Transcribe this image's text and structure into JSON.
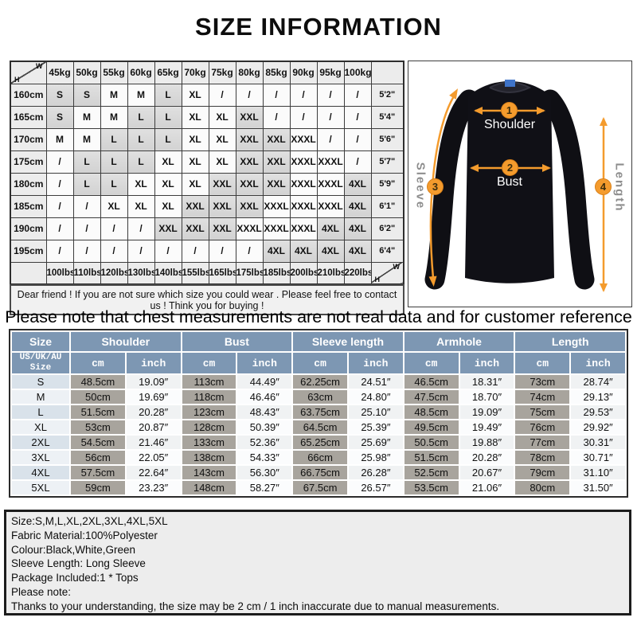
{
  "title": "SIZE INFORMATION",
  "size_matrix": {
    "corner": {
      "top_right": "W",
      "bottom_left": "H"
    },
    "weight_headers": [
      "45kg",
      "50kg",
      "55kg",
      "60kg",
      "65kg",
      "70kg",
      "75kg",
      "80kg",
      "85kg",
      "90kg",
      "95kg",
      "100kg"
    ],
    "rows": [
      {
        "height": "160cm",
        "values": [
          "S",
          "S",
          "M",
          "M",
          "L",
          "XL",
          "/",
          "/",
          "/",
          "/",
          "/",
          "/"
        ],
        "height_ft": "5'2\""
      },
      {
        "height": "165cm",
        "values": [
          "S",
          "M",
          "M",
          "L",
          "L",
          "XL",
          "XL",
          "XXL",
          "/",
          "/",
          "/",
          "/"
        ],
        "height_ft": "5'4\""
      },
      {
        "height": "170cm",
        "values": [
          "M",
          "M",
          "L",
          "L",
          "L",
          "XL",
          "XL",
          "XXL",
          "XXL",
          "XXXL",
          "/",
          "/"
        ],
        "height_ft": "5'6\""
      },
      {
        "height": "175cm",
        "values": [
          "/",
          "L",
          "L",
          "L",
          "XL",
          "XL",
          "XL",
          "XXL",
          "XXL",
          "XXXL",
          "XXXL",
          "/"
        ],
        "height_ft": "5'7\""
      },
      {
        "height": "180cm",
        "values": [
          "/",
          "L",
          "L",
          "XL",
          "XL",
          "XL",
          "XXL",
          "XXL",
          "XXL",
          "XXXL",
          "XXXL",
          "4XL"
        ],
        "height_ft": "5'9\""
      },
      {
        "height": "185cm",
        "values": [
          "/",
          "/",
          "XL",
          "XL",
          "XL",
          "XXL",
          "XXL",
          "XXL",
          "XXXL",
          "XXXL",
          "XXXL",
          "4XL"
        ],
        "height_ft": "6'1\""
      },
      {
        "height": "190cm",
        "values": [
          "/",
          "/",
          "/",
          "/",
          "XXL",
          "XXL",
          "XXL",
          "XXXL",
          "XXXL",
          "XXXL",
          "4XL",
          "4XL"
        ],
        "height_ft": "6'2\""
      },
      {
        "height": "195cm",
        "values": [
          "/",
          "/",
          "/",
          "/",
          "/",
          "/",
          "/",
          "/",
          "4XL",
          "4XL",
          "4XL",
          "4XL"
        ],
        "height_ft": "6'4\""
      }
    ],
    "lbs_footer": [
      "100lbs",
      "110lbs",
      "120lbs",
      "130lbs",
      "140lbs",
      "155lbs",
      "165lbs",
      "175lbs",
      "185lbs",
      "200lbs",
      "210lbs",
      "220lbs"
    ],
    "shaded_sizes": [
      "S",
      "L",
      "XXL",
      "4XL"
    ],
    "note": "Dear friend ! If you are not sure which size you could wear . Please feel free to contact us ! Think you for buying !"
  },
  "garment": {
    "labels": {
      "shoulder": "Shoulder",
      "bust": "Bust",
      "sleeve": "Sleeve",
      "length": "Length"
    },
    "badges": [
      "1",
      "2",
      "3",
      "4"
    ],
    "accent_color": "#F49B2D"
  },
  "notice": "Please note that chest measurements  are not real data and for customer reference only.",
  "detail_table": {
    "groups": [
      "Size",
      "Shoulder",
      "Bust",
      "Sleeve length",
      "Armhole",
      "Length"
    ],
    "size_subheader": "US/UK/AU Size",
    "cm_label": "cm",
    "inch_label": "inch",
    "header_color": "#7D97B3",
    "cm_cell_color": "#A8A49D",
    "rows": [
      [
        "S",
        "48.5cm",
        "19.09″",
        "113cm",
        "44.49″",
        "62.25cm",
        "24.51″",
        "46.5cm",
        "18.31″",
        "73cm",
        "28.74″"
      ],
      [
        "M",
        "50cm",
        "19.69″",
        "118cm",
        "46.46″",
        "63cm",
        "24.80″",
        "47.5cm",
        "18.70″",
        "74cm",
        "29.13″"
      ],
      [
        "L",
        "51.5cm",
        "20.28″",
        "123cm",
        "48.43″",
        "63.75cm",
        "25.10″",
        "48.5cm",
        "19.09″",
        "75cm",
        "29.53″"
      ],
      [
        "XL",
        "53cm",
        "20.87″",
        "128cm",
        "50.39″",
        "64.5cm",
        "25.39″",
        "49.5cm",
        "19.49″",
        "76cm",
        "29.92″"
      ],
      [
        "2XL",
        "54.5cm",
        "21.46″",
        "133cm",
        "52.36″",
        "65.25cm",
        "25.69″",
        "50.5cm",
        "19.88″",
        "77cm",
        "30.31″"
      ],
      [
        "3XL",
        "56cm",
        "22.05″",
        "138cm",
        "54.33″",
        "66cm",
        "25.98″",
        "51.5cm",
        "20.28″",
        "78cm",
        "30.71″"
      ],
      [
        "4XL",
        "57.5cm",
        "22.64″",
        "143cm",
        "56.30″",
        "66.75cm",
        "26.28″",
        "52.5cm",
        "20.67″",
        "79cm",
        "31.10″"
      ],
      [
        "5XL",
        "59cm",
        "23.23″",
        "148cm",
        "58.27″",
        "67.5cm",
        "26.57″",
        "53.5cm",
        "21.06″",
        "80cm",
        "31.50″"
      ]
    ]
  },
  "product_info": {
    "lines": [
      "Size:S,M,L,XL,2XL,3XL,4XL,5XL",
      "Fabric Material:100%Polyester",
      "Colour:Black,White,Green",
      "Sleeve Length: Long Sleeve",
      "Package Included:1 * Tops",
      "Please note:",
      "Thanks to your understanding, the size may be 2 cm / 1 inch inaccurate due to manual measurements."
    ]
  }
}
